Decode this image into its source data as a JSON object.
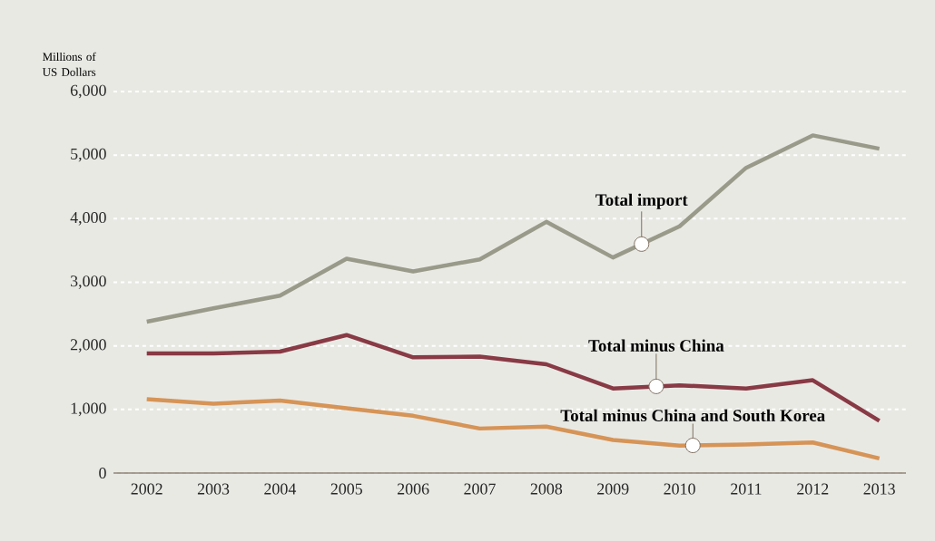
{
  "chart_data": {
    "type": "line",
    "ylabel": "Millions of US Dollars",
    "categories": [
      "2002",
      "2003",
      "2004",
      "2005",
      "2006",
      "2007",
      "2008",
      "2009",
      "2010",
      "2011",
      "2012",
      "2013"
    ],
    "series": [
      {
        "name": "Total import",
        "color": "#9a9a8a",
        "values": [
          2380,
          2590,
          2790,
          3370,
          3170,
          3360,
          3950,
          3390,
          3880,
          4800,
          5310,
          5100
        ]
      },
      {
        "name": "Total minus China",
        "color": "#883a45",
        "values": [
          1880,
          1880,
          1910,
          2170,
          1820,
          1830,
          1710,
          1330,
          1380,
          1330,
          1460,
          820
        ]
      },
      {
        "name": "Total minus China and South Korea",
        "color": "#d69457",
        "values": [
          1160,
          1090,
          1140,
          1020,
          900,
          700,
          730,
          520,
          430,
          450,
          480,
          230
        ]
      }
    ],
    "ylim": [
      0,
      6000
    ],
    "yticks": [
      0,
      {
        "value": 1000,
        "label": "1,000"
      },
      {
        "value": 2000,
        "label": "2,000"
      },
      {
        "value": 3000,
        "label": "3,000"
      },
      {
        "value": 4000,
        "label": "4,000"
      },
      {
        "value": 5000,
        "label": "5,000"
      },
      {
        "value": 6000,
        "label": "6,000"
      }
    ],
    "grid": "y",
    "legend": false
  }
}
